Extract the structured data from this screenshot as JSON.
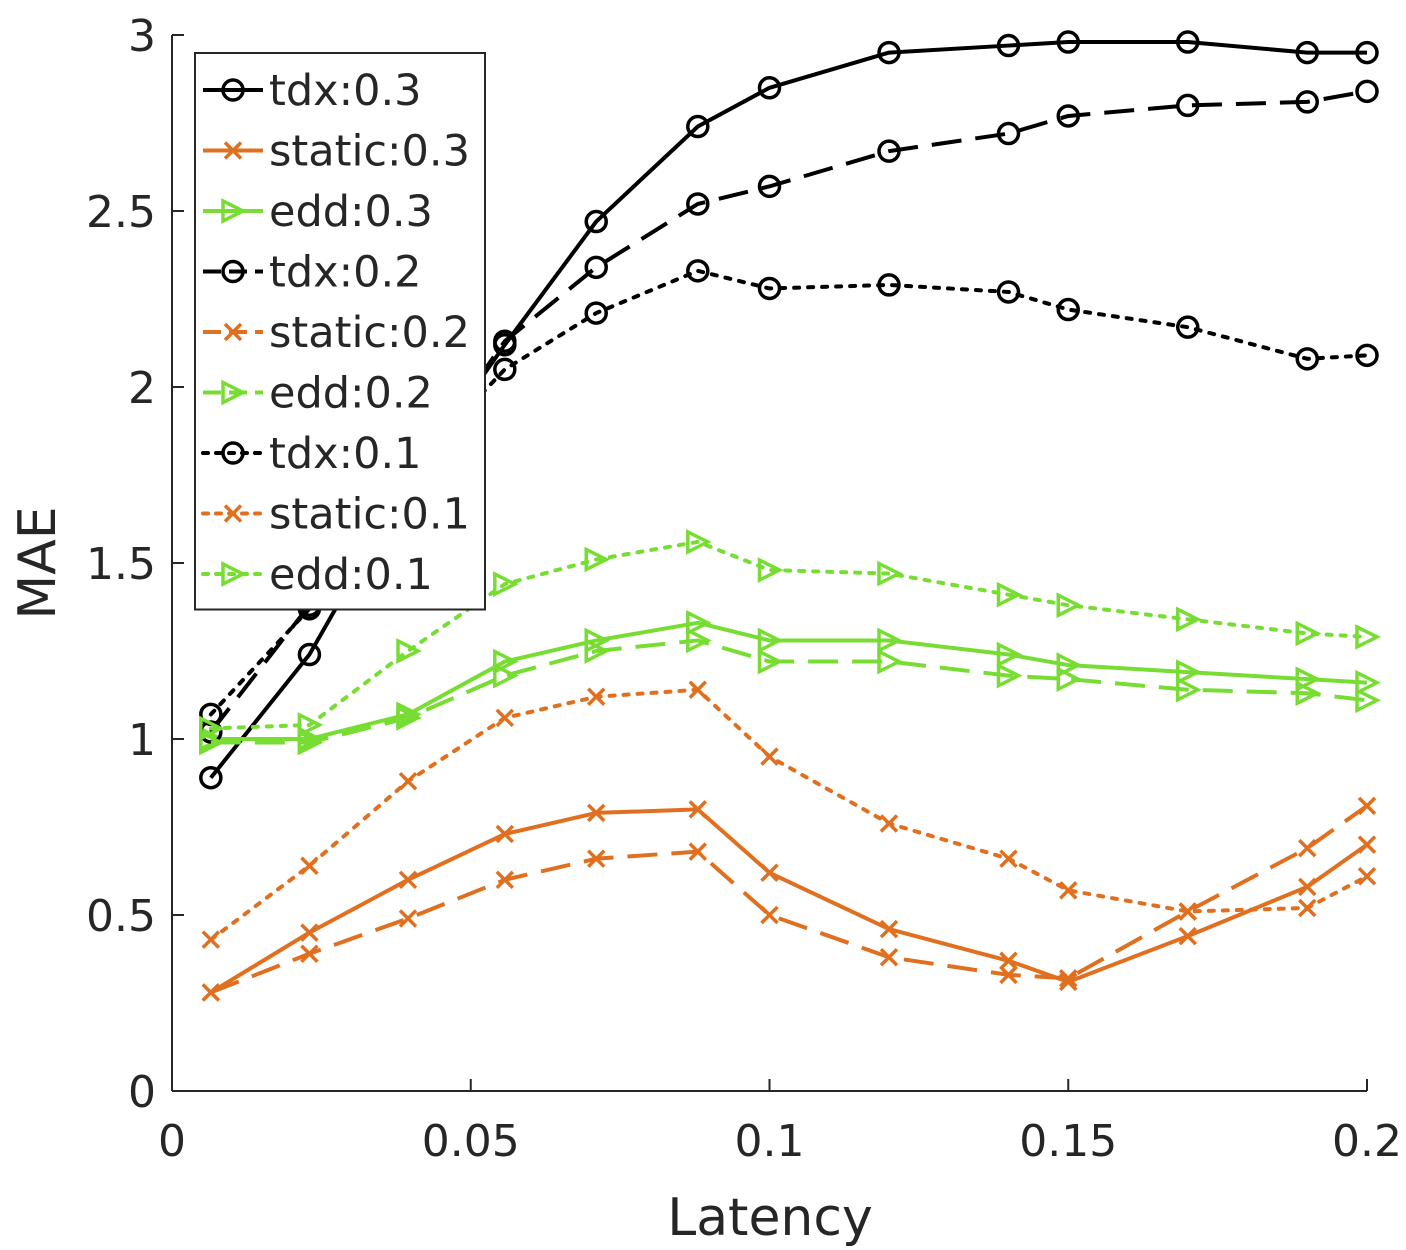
{
  "chart_data": {
    "type": "line",
    "xlabel": "Latency",
    "ylabel": "MAE",
    "xlim": [
      0,
      0.2
    ],
    "ylim": [
      0,
      3
    ],
    "xticks": [
      0,
      0.05,
      0.1,
      0.15,
      0.2
    ],
    "xtick_labels": [
      "0",
      "0.05",
      "0.1",
      "0.15",
      "0.2"
    ],
    "yticks": [
      0,
      0.5,
      1,
      1.5,
      2,
      2.5,
      3
    ],
    "ytick_labels": [
      "0",
      "0.5",
      "1",
      "1.5",
      "2",
      "2.5",
      "3"
    ],
    "grid": false,
    "legend_position": "top-left",
    "x": [
      0.0065,
      0.023,
      0.0395,
      0.0557,
      0.071,
      0.088,
      0.1,
      0.12,
      0.14,
      0.15,
      0.17,
      0.19,
      0.2
    ],
    "series": [
      {
        "name": "tdx:0.3",
        "color": "#000000",
        "style": "solid",
        "marker": "circle",
        "values": [
          0.89,
          1.24,
          1.73,
          2.12,
          2.47,
          2.74,
          2.85,
          2.95,
          2.97,
          2.98,
          2.98,
          2.95,
          2.95
        ]
      },
      {
        "name": "static:0.3",
        "color": "#e07020",
        "style": "solid",
        "marker": "x",
        "values": [
          0.28,
          0.45,
          0.6,
          0.73,
          0.79,
          0.8,
          0.62,
          0.46,
          0.37,
          0.31,
          0.44,
          0.58,
          0.7
        ]
      },
      {
        "name": "edd:0.3",
        "color": "#77dd33",
        "style": "solid",
        "marker": "triangle-right",
        "values": [
          1.0,
          1.0,
          1.07,
          1.22,
          1.28,
          1.33,
          1.28,
          1.28,
          1.24,
          1.21,
          1.19,
          1.17,
          1.16
        ]
      },
      {
        "name": "tdx:0.2",
        "color": "#000000",
        "style": "dashed",
        "marker": "circle",
        "values": [
          1.02,
          1.38,
          1.74,
          2.13,
          2.34,
          2.52,
          2.57,
          2.67,
          2.72,
          2.77,
          2.8,
          2.81,
          2.84
        ]
      },
      {
        "name": "static:0.2",
        "color": "#e07020",
        "style": "dashed",
        "marker": "x",
        "values": [
          0.28,
          0.39,
          0.49,
          0.6,
          0.66,
          0.68,
          0.5,
          0.38,
          0.33,
          0.32,
          0.51,
          0.69,
          0.81
        ]
      },
      {
        "name": "edd:0.2",
        "color": "#77dd33",
        "style": "dashed",
        "marker": "triangle-right",
        "values": [
          0.99,
          0.99,
          1.06,
          1.18,
          1.25,
          1.28,
          1.22,
          1.22,
          1.18,
          1.17,
          1.14,
          1.13,
          1.11
        ]
      },
      {
        "name": "tdx:0.1",
        "color": "#000000",
        "style": "dotted",
        "marker": "circle",
        "values": [
          1.07,
          1.37,
          1.76,
          2.05,
          2.21,
          2.33,
          2.28,
          2.29,
          2.27,
          2.22,
          2.17,
          2.08,
          2.09
        ]
      },
      {
        "name": "static:0.1",
        "color": "#e07020",
        "style": "dotted",
        "marker": "x",
        "values": [
          0.43,
          0.64,
          0.88,
          1.06,
          1.12,
          1.14,
          0.95,
          0.76,
          0.66,
          0.57,
          0.51,
          0.52,
          0.61
        ]
      },
      {
        "name": "edd:0.1",
        "color": "#77dd33",
        "style": "dotted",
        "marker": "triangle-right",
        "values": [
          1.03,
          1.04,
          1.25,
          1.44,
          1.51,
          1.56,
          1.48,
          1.47,
          1.41,
          1.38,
          1.34,
          1.3,
          1.29
        ]
      }
    ]
  }
}
